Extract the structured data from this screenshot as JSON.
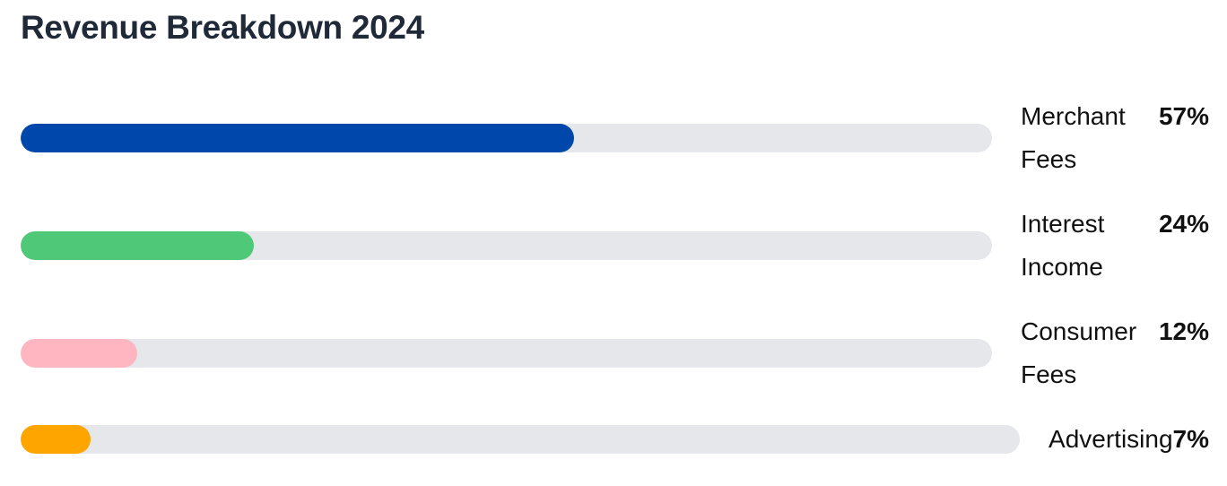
{
  "chart_data": {
    "type": "bar",
    "title": "Revenue Breakdown 2024",
    "categories": [
      "Merchant Fees",
      "Interest Income",
      "Consumer Fees",
      "Advertising"
    ],
    "values": [
      57,
      24,
      12,
      7
    ],
    "value_labels": [
      "57%",
      "24%",
      "12%",
      "7%"
    ],
    "colors": [
      "#0047ab",
      "#4fc978",
      "#ffb6c1",
      "#ffa500"
    ],
    "xlim": [
      0,
      100
    ]
  }
}
